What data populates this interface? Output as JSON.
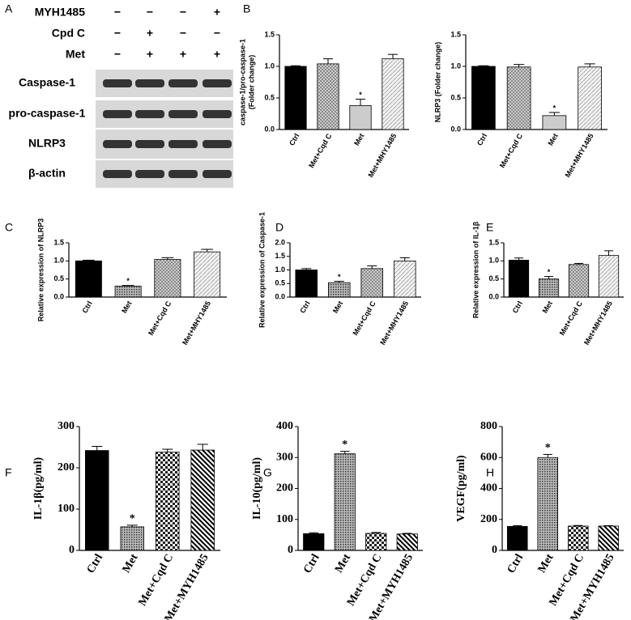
{
  "blot": {
    "panel": "A",
    "treatments": [
      {
        "name": "MYH1485",
        "signs": [
          "−",
          "−",
          "−",
          "+"
        ]
      },
      {
        "name": "Cpd C",
        "signs": [
          "−",
          "+",
          "−",
          "−"
        ]
      },
      {
        "name": "Met",
        "signs": [
          "−",
          "+",
          "+",
          "+"
        ]
      }
    ],
    "proteins": [
      "Caspase-1",
      "pro-caspase-1",
      "NLRP3",
      "β-actin"
    ]
  },
  "chart_data": [
    {
      "type": "bar",
      "panel": "B",
      "ylabel": [
        "caspase-1/pro-caspase-1",
        "(Folder change)"
      ],
      "font": "sans",
      "categories": [
        "Ctrl",
        "Met+Cqd C",
        "Met",
        "Met+MHY1485"
      ],
      "values": [
        1.0,
        1.04,
        0.38,
        1.12
      ],
      "errors": [
        0.01,
        0.08,
        0.1,
        0.07
      ],
      "ylim": [
        0,
        1.5
      ],
      "yticks": [
        {
          "value": 0,
          "label": "0.0"
        },
        0.5,
        {
          "value": 1,
          "label": "1.0"
        },
        1.5
      ],
      "patterns": [
        "solid",
        "crosshatch",
        "solid",
        "hatch"
      ],
      "colors": [
        "#000000",
        "#aaaaaa",
        "#cccccc",
        "#cccccc"
      ],
      "annotations": [
        {
          "text": "*",
          "category": "Met"
        }
      ]
    },
    {
      "type": "bar",
      "panel": "",
      "ylabel": [
        "NLRP3 (Folder change)"
      ],
      "font": "sans",
      "categories": [
        "Ctrl",
        "Met+Cqd C",
        "Met",
        "Met+MHY1485"
      ],
      "values": [
        1.0,
        0.99,
        0.22,
        0.99
      ],
      "errors": [
        0.01,
        0.04,
        0.05,
        0.05
      ],
      "ylim": [
        0,
        1.5
      ],
      "yticks": [
        {
          "value": 0,
          "label": "0.0"
        },
        0.5,
        {
          "value": 1,
          "label": "1.0"
        },
        1.5
      ],
      "patterns": [
        "solid",
        "crosshatch",
        "solid",
        "hatch"
      ],
      "colors": [
        "#000000",
        "#aaaaaa",
        "#cccccc",
        "#cccccc"
      ],
      "annotations": [
        {
          "text": "*",
          "category": "Met"
        }
      ]
    },
    {
      "type": "bar",
      "panel": "C",
      "ylabel": [
        "Relative expression of NLRP3"
      ],
      "font": "sans",
      "categories": [
        "Ctrl",
        "Met",
        "Met+Cqd C",
        "Met+MHY1485"
      ],
      "values": [
        1.0,
        0.3,
        1.04,
        1.25
      ],
      "errors": [
        0.02,
        0.02,
        0.05,
        0.07
      ],
      "ylim": [
        0,
        1.5
      ],
      "yticks": [
        {
          "value": 0,
          "label": "0.0"
        },
        0.5,
        {
          "value": 1,
          "label": "1.0"
        },
        1.5
      ],
      "patterns": [
        "solid",
        "dots",
        "crosshatch",
        "hatch"
      ],
      "colors": [
        "#000000",
        "#666666",
        "#888888",
        "#aaaaaa"
      ],
      "annotations": [
        {
          "text": "*",
          "category": "Met"
        }
      ]
    },
    {
      "type": "bar",
      "panel": "D",
      "ylabel": [
        "Relative expression of Caspase-1"
      ],
      "font": "sans",
      "categories": [
        "Ctrl",
        "Met",
        "Met+Cqd C",
        "Met+MHY1485"
      ],
      "values": [
        1.0,
        0.53,
        1.05,
        1.33
      ],
      "errors": [
        0.05,
        0.05,
        0.1,
        0.12
      ],
      "ylim": [
        0,
        2
      ],
      "yticks": [
        {
          "value": 0,
          "label": "0.0"
        },
        0.5,
        {
          "value": 1,
          "label": "1.0"
        },
        1.5,
        {
          "value": 2,
          "label": "2.0"
        }
      ],
      "patterns": [
        "solid",
        "dots",
        "crosshatch",
        "hatch"
      ],
      "colors": [
        "#000000",
        "#666666",
        "#888888",
        "#aaaaaa"
      ],
      "annotations": [
        {
          "text": "*",
          "category": "Met"
        }
      ]
    },
    {
      "type": "bar",
      "panel": "E",
      "ylabel": [
        "Relative expression of IL-1β"
      ],
      "font": "sans",
      "categories": [
        "Ctrl",
        "Met",
        "Met+Cqd C",
        "Met+MHY1485"
      ],
      "values": [
        1.02,
        0.5,
        0.9,
        1.15
      ],
      "errors": [
        0.06,
        0.07,
        0.03,
        0.13
      ],
      "ylim": [
        0,
        1.5
      ],
      "yticks": [
        {
          "value": 0,
          "label": "0.0"
        },
        0.5,
        {
          "value": 1,
          "label": "1.0"
        },
        1.5
      ],
      "patterns": [
        "solid",
        "dots",
        "crosshatch",
        "hatch"
      ],
      "colors": [
        "#000000",
        "#666666",
        "#888888",
        "#aaaaaa"
      ],
      "annotations": [
        {
          "text": "*",
          "category": "Met"
        }
      ]
    },
    {
      "type": "bar",
      "panel": "F",
      "ylabel": [
        "IL-1β(pg/ml)"
      ],
      "font": "serif",
      "categories": [
        "Ctrl",
        "Met",
        "Met+Cqd C",
        "Met+MYH1485"
      ],
      "values": [
        242,
        57,
        238,
        243
      ],
      "errors": [
        10,
        4,
        7,
        14
      ],
      "ylim": [
        0,
        300
      ],
      "yticks": [
        0,
        100,
        200,
        300
      ],
      "patterns": [
        "solid",
        "dots",
        "checker",
        "stripes"
      ],
      "colors": [
        "#000000",
        "#555555",
        "#777777",
        "#555555"
      ],
      "annotations": [
        {
          "text": "*",
          "category": "Met"
        }
      ]
    },
    {
      "type": "bar",
      "panel": "G",
      "ylabel": [
        "IL-10(pg/ml)"
      ],
      "font": "serif",
      "categories": [
        "Ctrl",
        "Met",
        "Met+Cqd C",
        "Met+MYH1485"
      ],
      "values": [
        54,
        312,
        55,
        53
      ],
      "errors": [
        3,
        8,
        3,
        2
      ],
      "ylim": [
        0,
        400
      ],
      "yticks": [
        0,
        100,
        200,
        300,
        400
      ],
      "patterns": [
        "solid",
        "dots",
        "checker",
        "stripes"
      ],
      "colors": [
        "#000000",
        "#555555",
        "#777777",
        "#555555"
      ],
      "annotations": [
        {
          "text": "*",
          "category": "Met"
        }
      ]
    },
    {
      "type": "bar",
      "panel": "H",
      "ylabel": [
        "VEGF(pg/ml)"
      ],
      "font": "serif",
      "categories": [
        "Ctrl",
        "Met",
        "Met+Cqd C",
        "Met+MYH1485"
      ],
      "values": [
        155,
        600,
        157,
        157
      ],
      "errors": [
        5,
        20,
        4,
        3
      ],
      "ylim": [
        0,
        800
      ],
      "yticks": [
        0,
        200,
        400,
        600,
        800
      ],
      "patterns": [
        "solid",
        "dots",
        "checker",
        "stripes"
      ],
      "colors": [
        "#000000",
        "#555555",
        "#777777",
        "#555555"
      ],
      "annotations": [
        {
          "text": "*",
          "category": "Met"
        }
      ]
    }
  ]
}
